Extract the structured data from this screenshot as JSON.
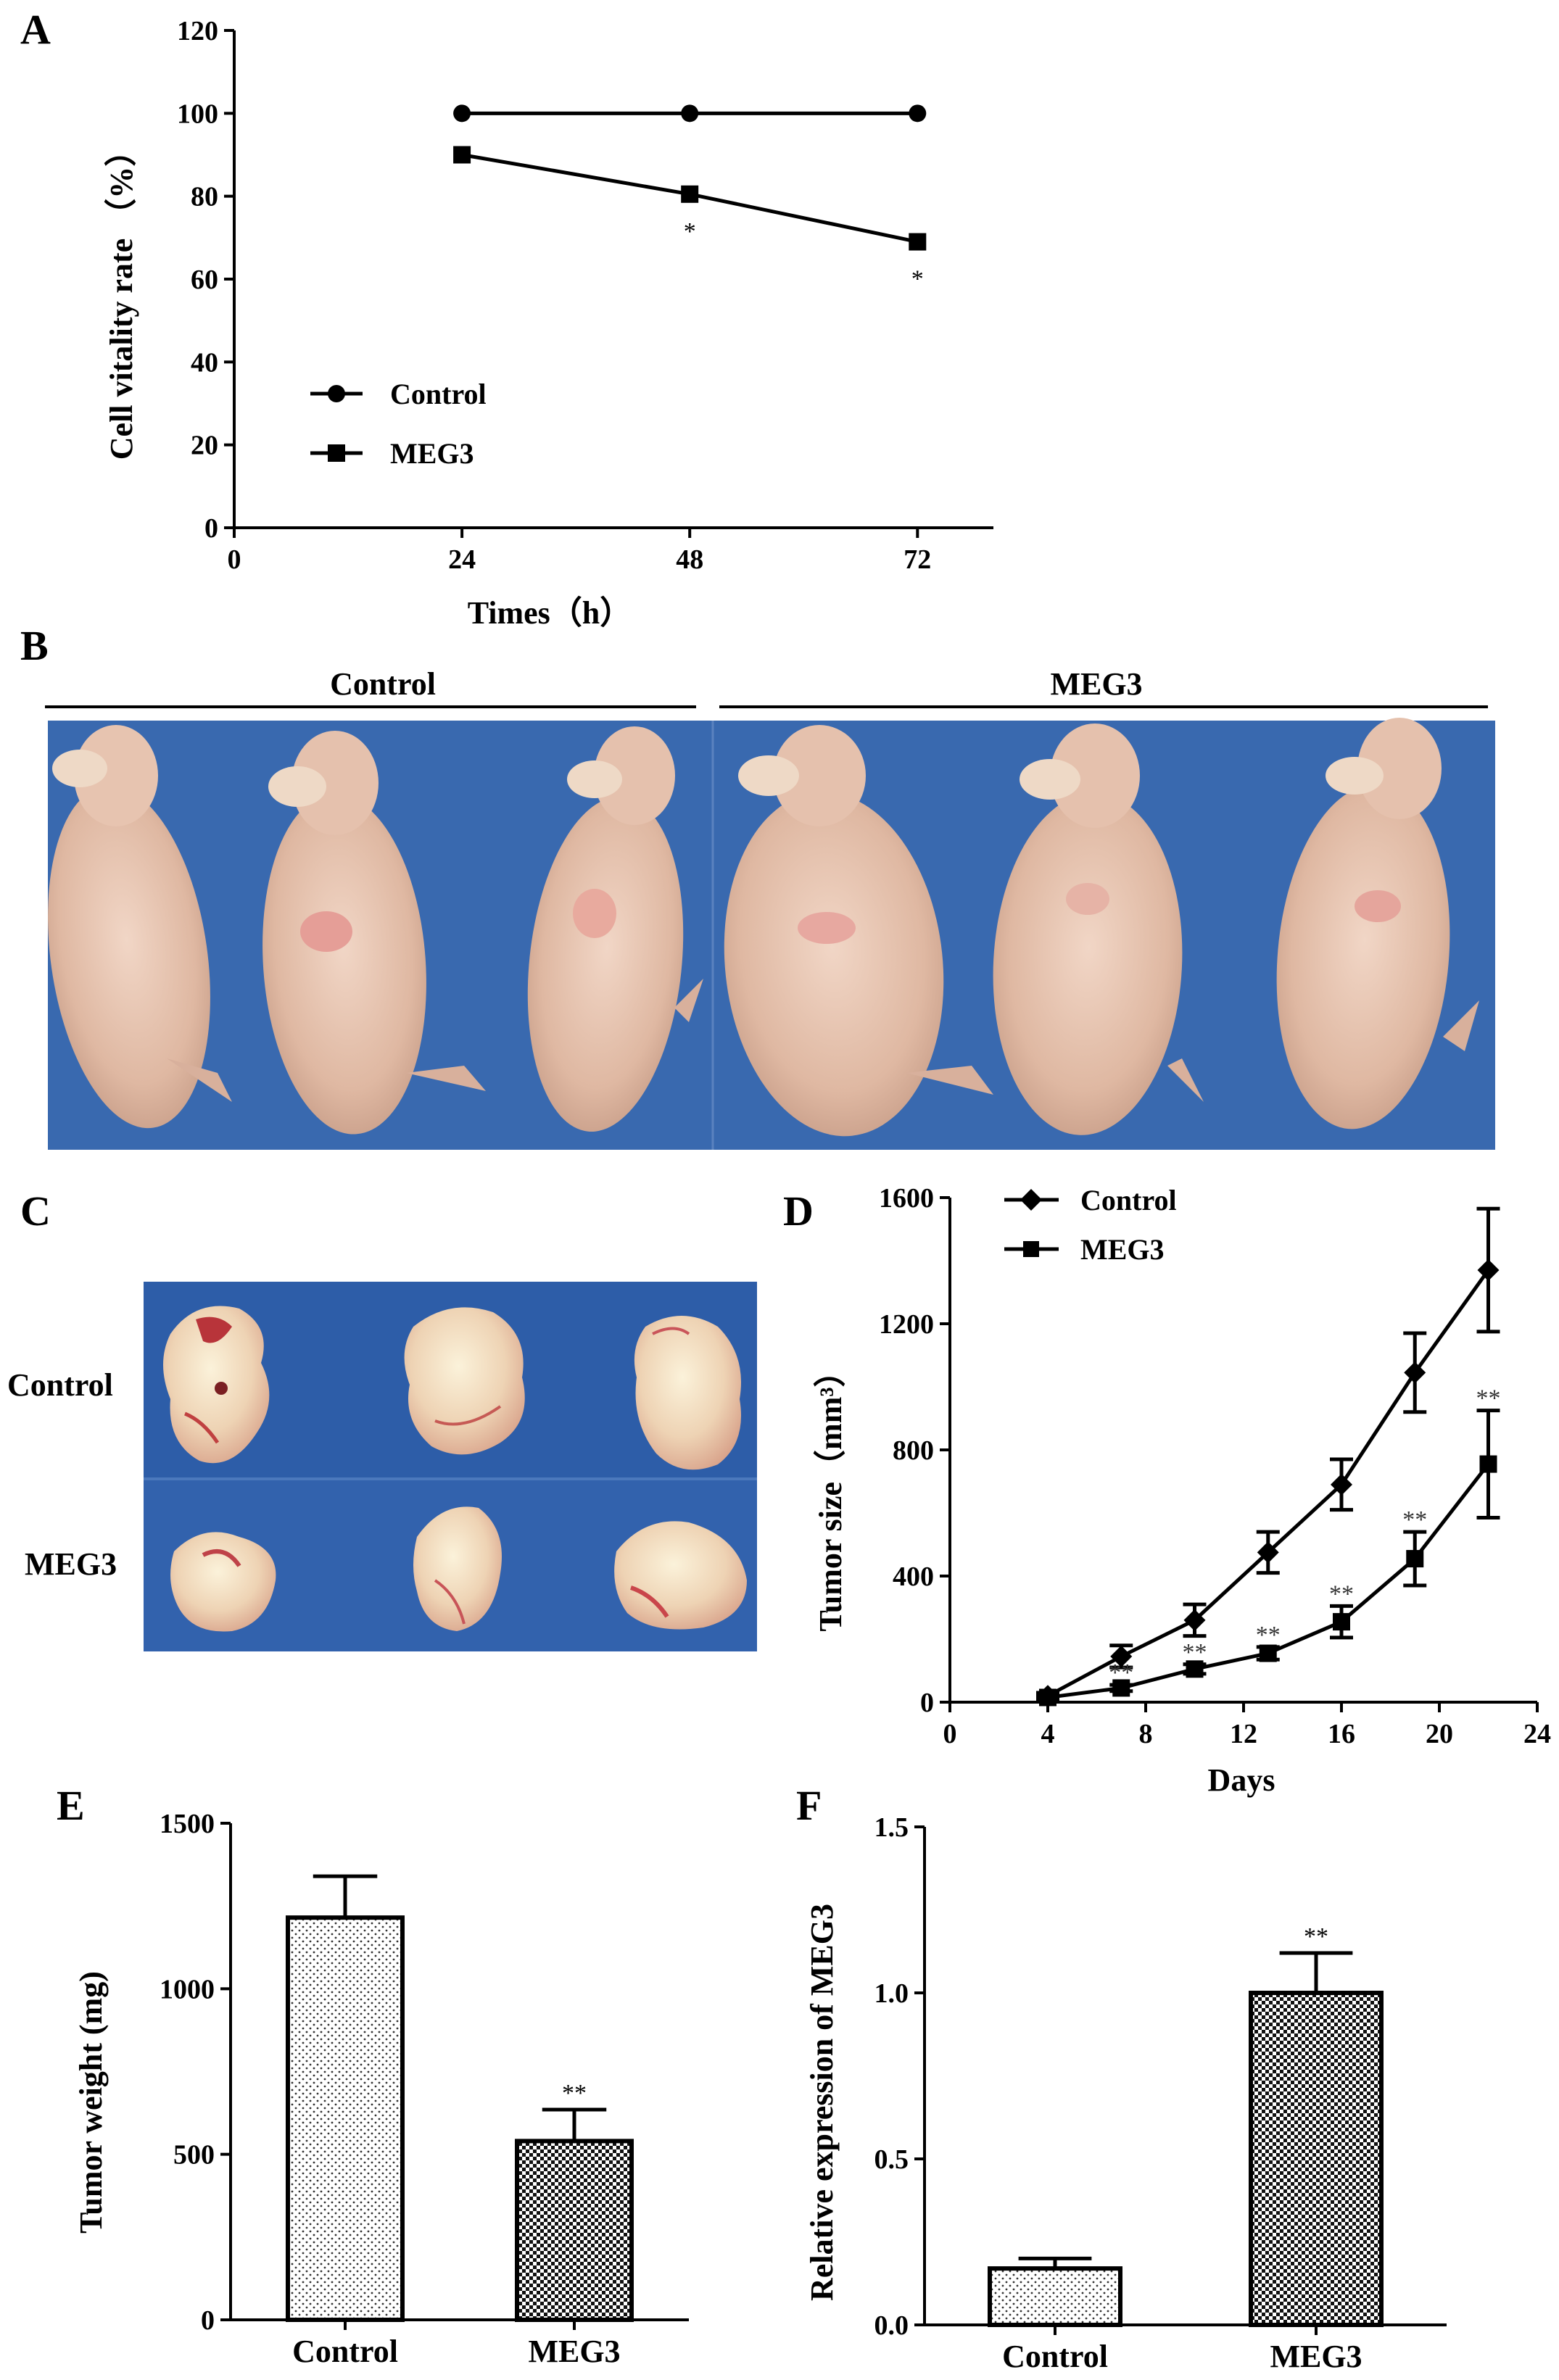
{
  "panels": {
    "A": {
      "letter": "A",
      "chart_data": {
        "type": "line",
        "xlabel": "Times（h）",
        "ylabel": "Cell vitality rate （%）",
        "xlim": [
          0,
          80
        ],
        "ylim": [
          0,
          120
        ],
        "x_ticks": [
          "0",
          "24",
          "48",
          "72"
        ],
        "y_ticks": [
          "0",
          "20",
          "40",
          "60",
          "80",
          "100",
          "120"
        ],
        "x": [
          24,
          48,
          72
        ],
        "series": [
          {
            "name": "Control",
            "marker": "circle",
            "values": [
              100,
              100,
              100
            ]
          },
          {
            "name": "MEG3",
            "marker": "square",
            "values": [
              90,
              80.5,
              69
            ]
          }
        ],
        "annotations": [
          {
            "x": 48,
            "text": "*"
          },
          {
            "x": 72,
            "text": "*"
          }
        ],
        "legend": "lower-left"
      }
    },
    "B": {
      "letter": "B",
      "group_labels": [
        "Control",
        "MEG3"
      ],
      "photo": "mouse-xenograft-photo"
    },
    "C": {
      "letter": "C",
      "row_labels": [
        "Control",
        "MEG3"
      ],
      "photo": "excised-tumor-photo"
    },
    "D": {
      "letter": "D",
      "chart_data": {
        "type": "line",
        "xlabel": "Days",
        "ylabel": "Tumor size（mm³）",
        "xlim": [
          0,
          24
        ],
        "ylim": [
          0,
          1600
        ],
        "x_ticks": [
          "0",
          "4",
          "8",
          "12",
          "16",
          "20",
          "24"
        ],
        "y_ticks": [
          "0",
          "400",
          "800",
          "1200",
          "1600"
        ],
        "x": [
          4,
          7,
          10,
          13,
          16,
          19,
          22
        ],
        "series": [
          {
            "name": "Control",
            "marker": "diamond",
            "values": [
              20,
              145,
              260,
              475,
              690,
              1045,
              1370
            ],
            "errors": [
              10,
              35,
              50,
              65,
              80,
              125,
              195
            ]
          },
          {
            "name": "MEG3",
            "marker": "square",
            "values": [
              15,
              45,
              105,
              155,
              255,
              455,
              755
            ],
            "errors": [
              5,
              10,
              15,
              20,
              50,
              85,
              170
            ]
          }
        ],
        "annotations": [
          {
            "x": 7,
            "text": "**"
          },
          {
            "x": 10,
            "text": "**"
          },
          {
            "x": 13,
            "text": "**"
          },
          {
            "x": 16,
            "text": "**"
          },
          {
            "x": 19,
            "text": "**"
          },
          {
            "x": 22,
            "text": "**"
          }
        ],
        "legend": "top-left"
      }
    },
    "E": {
      "letter": "E",
      "chart_data": {
        "type": "bar",
        "categories": [
          "Control",
          "MEG3"
        ],
        "values": [
          1215,
          540
        ],
        "errors": [
          125,
          95
        ],
        "ylabel": "Tumor weight (mg)",
        "ylim": [
          0,
          1500
        ],
        "y_ticks": [
          "0",
          "500",
          "1000",
          "1500"
        ],
        "annotations": [
          {
            "category": "MEG3",
            "text": "**"
          }
        ]
      }
    },
    "F": {
      "letter": "F",
      "chart_data": {
        "type": "bar",
        "categories": [
          "Control",
          "MEG3"
        ],
        "values": [
          0.17,
          1.0
        ],
        "errors": [
          0.03,
          0.12
        ],
        "ylabel": "Relative expression of MEG3",
        "ylim": [
          0,
          1.5
        ],
        "y_ticks": [
          "0.0",
          "0.5",
          "1.0",
          "1.5"
        ],
        "annotations": [
          {
            "category": "MEG3",
            "text": "**"
          }
        ]
      }
    }
  }
}
